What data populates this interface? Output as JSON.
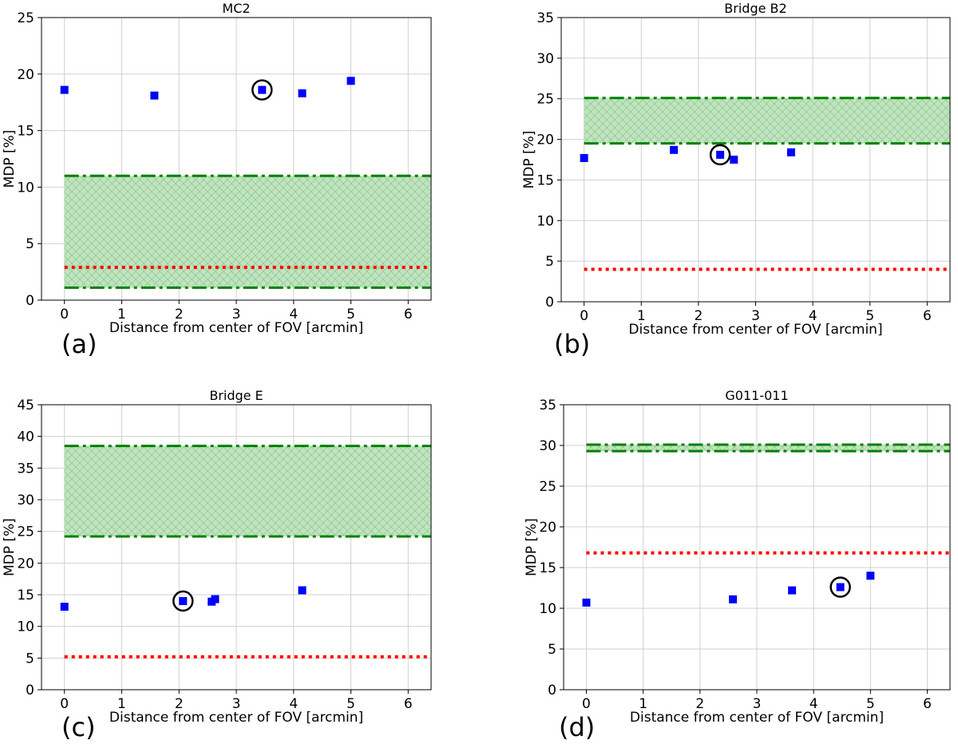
{
  "figure": {
    "colors": {
      "points": "#0000ff",
      "band_line": "#008000",
      "band_fill": "#bfe4bf",
      "red_line": "#ff0000",
      "grid": "#d0d0d0",
      "circle": "#000000"
    }
  },
  "chart_data": [
    {
      "type": "scatter",
      "title": "MC2",
      "panel_label": "(a)",
      "xlabel": "Distance from center of FOV [arcmin]",
      "ylabel": "MDP [%]",
      "xlim": [
        -0.4,
        6.4
      ],
      "ylim": [
        0,
        25
      ],
      "xticks": [
        0,
        1,
        2,
        3,
        4,
        5,
        6
      ],
      "yticks": [
        0,
        5,
        10,
        15,
        20,
        25
      ],
      "points": [
        {
          "x": 0.0,
          "y": 18.6
        },
        {
          "x": 1.57,
          "y": 18.1
        },
        {
          "x": 3.45,
          "y": 18.6
        },
        {
          "x": 4.15,
          "y": 18.3
        },
        {
          "x": 5.0,
          "y": 19.4
        }
      ],
      "circled_point": {
        "x": 3.45,
        "y": 18.6
      },
      "band": {
        "lower": 1.1,
        "upper": 11.0,
        "x_start": 0.0
      },
      "red_line": {
        "y": 2.9,
        "x_start": 0.0
      }
    },
    {
      "type": "scatter",
      "title": "Bridge B2",
      "panel_label": "(b)",
      "xlabel": "Distance from center of FOV [arcmin]",
      "ylabel": "MDP [%]",
      "xlim": [
        -0.4,
        6.4
      ],
      "ylim": [
        0,
        35
      ],
      "xticks": [
        0,
        1,
        2,
        3,
        4,
        5,
        6
      ],
      "yticks": [
        0,
        5,
        10,
        15,
        20,
        25,
        30,
        35
      ],
      "points": [
        {
          "x": 0.0,
          "y": 17.7
        },
        {
          "x": 1.57,
          "y": 18.7
        },
        {
          "x": 2.38,
          "y": 18.1
        },
        {
          "x": 2.62,
          "y": 17.5
        },
        {
          "x": 3.62,
          "y": 18.4
        }
      ],
      "circled_point": {
        "x": 2.38,
        "y": 18.1
      },
      "band": {
        "lower": 19.5,
        "upper": 25.1,
        "x_start": 0.0
      },
      "red_line": {
        "y": 4.0,
        "x_start": 0.0
      }
    },
    {
      "type": "scatter",
      "title": "Bridge E",
      "panel_label": "(c)",
      "xlabel": "Distance from center of FOV [arcmin]",
      "ylabel": "MDP [%]",
      "xlim": [
        -0.4,
        6.4
      ],
      "ylim": [
        0,
        45
      ],
      "xticks": [
        0,
        1,
        2,
        3,
        4,
        5,
        6
      ],
      "yticks": [
        0,
        5,
        10,
        15,
        20,
        25,
        30,
        35,
        40,
        45
      ],
      "points": [
        {
          "x": 0.0,
          "y": 13.1
        },
        {
          "x": 2.07,
          "y": 14.0
        },
        {
          "x": 2.57,
          "y": 13.9
        },
        {
          "x": 2.63,
          "y": 14.3
        },
        {
          "x": 4.15,
          "y": 15.7
        }
      ],
      "circled_point": {
        "x": 2.07,
        "y": 14.0
      },
      "band": {
        "lower": 24.2,
        "upper": 38.5,
        "x_start": 0.0
      },
      "red_line": {
        "y": 5.2,
        "x_start": 0.0
      }
    },
    {
      "type": "scatter",
      "title": "G011-011",
      "panel_label": "(d)",
      "xlabel": "Distance from center of FOV [arcmin]",
      "ylabel": "MDP [%]",
      "xlim": [
        -0.4,
        6.4
      ],
      "ylim": [
        0,
        35
      ],
      "xticks": [
        0,
        1,
        2,
        3,
        4,
        5,
        6
      ],
      "yticks": [
        0,
        5,
        10,
        15,
        20,
        25,
        30,
        35
      ],
      "points": [
        {
          "x": 0.0,
          "y": 10.7
        },
        {
          "x": 2.58,
          "y": 11.1
        },
        {
          "x": 3.62,
          "y": 12.2
        },
        {
          "x": 4.47,
          "y": 12.6
        },
        {
          "x": 5.0,
          "y": 14.0
        }
      ],
      "circled_point": {
        "x": 4.47,
        "y": 12.6
      },
      "band": {
        "lower": 29.3,
        "upper": 30.1,
        "x_start": 0.0
      },
      "red_line": {
        "y": 16.8,
        "x_start": 0.0
      }
    }
  ]
}
